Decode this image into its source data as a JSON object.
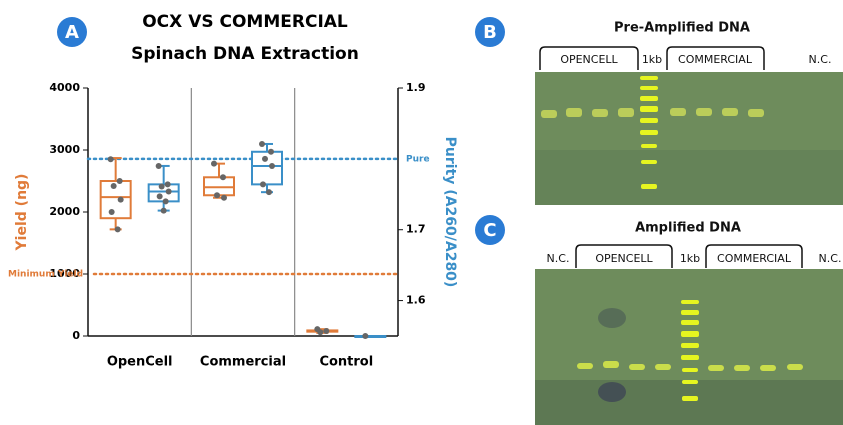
{
  "chart_data": {
    "type": "box",
    "panel_label": "A",
    "title": "OCX VS COMMERCIAL",
    "subtitle": "Spinach DNA Extraction",
    "categories": [
      "OpenCell",
      "Commercial",
      "Control"
    ],
    "ylabel": "Yield (ng)",
    "y2label": "Purity (A260/A280)",
    "ylim": [
      0,
      4000
    ],
    "yticks": [
      0,
      1000,
      2000,
      3000,
      4000
    ],
    "y2lim": [
      1.55,
      1.9
    ],
    "y2ticks": [
      1.6,
      1.7,
      1.9
    ],
    "series": [
      {
        "color": "#e07b39",
        "axis": "y",
        "values": [
          {
            "min": 1720,
            "q1": 1900,
            "median": 2240,
            "q3": 2500,
            "max": 2870,
            "points": [
              2850,
              2500,
              2420,
              2200,
              2000,
              1720
            ]
          },
          {
            "min": 2230,
            "q1": 2270,
            "median": 2400,
            "q3": 2560,
            "max": 2780,
            "points": [
              2780,
              2560,
              2270,
              2230
            ]
          },
          {
            "min": 50,
            "q1": 70,
            "median": 80,
            "q3": 90,
            "max": 110,
            "points": [
              110,
              80,
              60
            ]
          }
        ]
      },
      {
        "color": "#3a8fc8",
        "axis": "y2",
        "values": [
          {
            "min": 1.727,
            "q1": 1.74,
            "median": 1.754,
            "q3": 1.764,
            "max": 1.79,
            "points": [
              1.79,
              1.764,
              1.761,
              1.754,
              1.747,
              1.74,
              1.727
            ]
          },
          {
            "min": 1.753,
            "q1": 1.764,
            "median": 1.79,
            "q3": 1.81,
            "max": 1.821,
            "points": [
              1.821,
              1.81,
              1.8,
              1.79,
              1.764,
              1.753
            ]
          },
          {
            "min": 1.55,
            "q1": 1.55,
            "median": 1.55,
            "q3": 1.55,
            "max": 1.55,
            "points": [
              1.55
            ]
          }
        ]
      }
    ],
    "reference_lines": [
      {
        "label": "Minimum Yield",
        "value": 1000,
        "axis": "y",
        "color": "#e07b39"
      },
      {
        "label": "Pure",
        "value": 1.8,
        "axis": "y2",
        "color": "#3a8fc8"
      }
    ]
  },
  "panels": {
    "B": {
      "label": "B",
      "title": "Pre-Amplified DNA",
      "lanes": [
        "OPENCELL",
        "1kb",
        "COMMERCIAL",
        "N.C."
      ]
    },
    "C": {
      "label": "C",
      "title": "Amplified DNA",
      "lanes": [
        "N.C.",
        "OPENCELL",
        "1kb",
        "COMMERCIAL",
        "N.C."
      ]
    }
  }
}
